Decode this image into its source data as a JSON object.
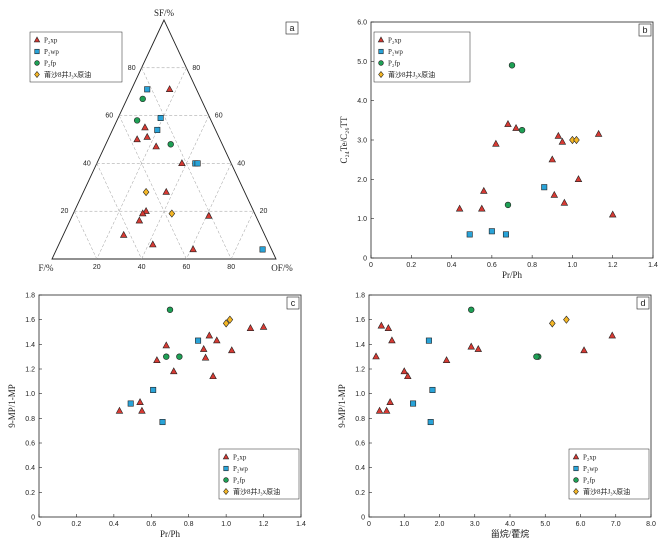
{
  "colors": {
    "P2xp": "#d63a33",
    "P2wp": "#29a3d8",
    "P2fp": "#1ea055",
    "oil": "#f4b625"
  },
  "chart_data": [
    {
      "panel": "a",
      "type": "scatter",
      "axes": {
        "top": "SF/%",
        "left": "F/%",
        "right": "OF/%"
      },
      "ticks": [
        "20",
        "40",
        "60",
        "80"
      ],
      "legend_position": "top-left",
      "legend": [
        "P₂xp",
        "P₂wp",
        "P₂fp",
        "莆沙8井J₃x原油"
      ],
      "series": [
        {
          "name": "P₂xp",
          "marker": "triangle",
          "color": "#d63a33",
          "points": [
            [
              71,
              12,
              17
            ],
            [
              55,
              31,
              14
            ],
            [
              50,
              37,
              13
            ],
            [
              51,
              32,
              17
            ],
            [
              47,
              30,
              23
            ],
            [
              40,
              22,
              38
            ],
            [
              28,
              35,
              37
            ],
            [
              20,
              48,
              32
            ],
            [
              19,
              50,
              31
            ],
            [
              16,
              53,
              31
            ],
            [
              6,
              52,
              42
            ],
            [
              18,
              21,
              61
            ],
            [
              10,
              63,
              27
            ],
            [
              4,
              35,
              61
            ]
          ]
        },
        {
          "name": "P₂wp",
          "marker": "square",
          "color": "#29a3d8",
          "points": [
            [
              71,
              22,
              7
            ],
            [
              59,
              22,
              19
            ],
            [
              54,
              26,
              20
            ],
            [
              40,
              16,
              44
            ],
            [
              40,
              15,
              45
            ],
            [
              4,
              4,
              92
            ]
          ]
        },
        {
          "name": "P₂fp",
          "marker": "circle",
          "color": "#1ea055",
          "points": [
            [
              67,
              26,
              7
            ],
            [
              58,
              33,
              9
            ],
            [
              48,
              23,
              29
            ]
          ]
        },
        {
          "name": "莆沙8井J₃x原油",
          "marker": "diamond",
          "color": "#f4b625",
          "points": [
            [
              28,
              44,
              28
            ],
            [
              19,
              37,
              44
            ]
          ]
        }
      ]
    },
    {
      "panel": "b",
      "type": "scatter",
      "xlabel": "Pr/Ph",
      "ylabel": "C₂₄Te/C₂₆TT",
      "xlim": [
        0,
        1.4
      ],
      "ylim": [
        0,
        6.0
      ],
      "xticks": [
        "0",
        "0.2",
        "0.4",
        "0.6",
        "0.8",
        "1.0",
        "1.2",
        "1.4"
      ],
      "yticks": [
        "0",
        "1.0",
        "2.0",
        "3.0",
        "4.0",
        "5.0",
        "6.0"
      ],
      "legend_position": "top-left",
      "legend": [
        "P₂xp",
        "P₂wp",
        "P₂fp",
        "莆沙8井J₃x原油"
      ],
      "series": [
        {
          "name": "P₂xp",
          "marker": "triangle",
          "color": "#d63a33",
          "points": [
            [
              0.44,
              1.25
            ],
            [
              0.55,
              1.25
            ],
            [
              0.56,
              1.7
            ],
            [
              0.62,
              2.9
            ],
            [
              0.68,
              3.4
            ],
            [
              0.72,
              3.3
            ],
            [
              0.9,
              2.5
            ],
            [
              0.91,
              1.6
            ],
            [
              0.93,
              3.1
            ],
            [
              0.95,
              2.95
            ],
            [
              0.96,
              1.4
            ],
            [
              1.03,
              2.0
            ],
            [
              1.13,
              3.15
            ],
            [
              1.2,
              1.1
            ]
          ]
        },
        {
          "name": "P₂wp",
          "marker": "square",
          "color": "#29a3d8",
          "points": [
            [
              0.49,
              0.6
            ],
            [
              0.6,
              0.68
            ],
            [
              0.67,
              0.6
            ],
            [
              0.86,
              1.8
            ]
          ]
        },
        {
          "name": "P₂fp",
          "marker": "circle",
          "color": "#1ea055",
          "points": [
            [
              0.7,
              4.9
            ],
            [
              0.75,
              3.25
            ],
            [
              0.68,
              1.35
            ]
          ]
        },
        {
          "name": "莆沙8井J₃x原油",
          "marker": "diamond",
          "color": "#f4b625",
          "points": [
            [
              1.0,
              3.0
            ],
            [
              1.02,
              3.0
            ]
          ]
        }
      ]
    },
    {
      "panel": "c",
      "type": "scatter",
      "xlabel": "Pr/Ph",
      "ylabel": "9-MP/1-MP",
      "xlim": [
        0,
        1.4
      ],
      "ylim": [
        0,
        1.8
      ],
      "xticks": [
        "0",
        "0.2",
        "0.4",
        "0.6",
        "0.8",
        "1.0",
        "1.2",
        "1.4"
      ],
      "yticks": [
        "0",
        "0.2",
        "0.4",
        "0.6",
        "0.8",
        "1.0",
        "1.2",
        "1.4",
        "1.6",
        "1.8"
      ],
      "legend_position": "bottom-right",
      "legend": [
        "P₂xp",
        "P₂wp",
        "P₂fp",
        "莆沙8井J₃x原油"
      ],
      "series": [
        {
          "name": "P₂xp",
          "marker": "triangle",
          "color": "#d63a33",
          "points": [
            [
              0.43,
              0.86
            ],
            [
              0.54,
              0.93
            ],
            [
              0.55,
              0.86
            ],
            [
              0.63,
              1.27
            ],
            [
              0.68,
              1.39
            ],
            [
              0.72,
              1.18
            ],
            [
              0.88,
              1.36
            ],
            [
              0.89,
              1.29
            ],
            [
              0.91,
              1.47
            ],
            [
              0.93,
              1.14
            ],
            [
              0.95,
              1.43
            ],
            [
              1.03,
              1.35
            ],
            [
              1.13,
              1.53
            ],
            [
              1.2,
              1.54
            ]
          ]
        },
        {
          "name": "P₂wp",
          "marker": "square",
          "color": "#29a3d8",
          "points": [
            [
              0.49,
              0.92
            ],
            [
              0.61,
              1.03
            ],
            [
              0.66,
              0.77
            ],
            [
              0.85,
              1.43
            ]
          ]
        },
        {
          "name": "P₂fp",
          "marker": "circle",
          "color": "#1ea055",
          "points": [
            [
              0.68,
              1.3
            ],
            [
              0.7,
              1.68
            ],
            [
              0.75,
              1.3
            ]
          ]
        },
        {
          "name": "莆沙8井J₃x原油",
          "marker": "diamond",
          "color": "#f4b625",
          "points": [
            [
              1.0,
              1.57
            ],
            [
              1.02,
              1.6
            ]
          ]
        }
      ]
    },
    {
      "panel": "d",
      "type": "scatter",
      "xlabel": "甾烷/藿烷",
      "ylabel": "9-MP/1-MP",
      "xlim": [
        0,
        8.0
      ],
      "ylim": [
        0,
        1.8
      ],
      "xticks": [
        "0",
        "1.0",
        "2.0",
        "3.0",
        "4.0",
        "5.0",
        "6.0",
        "7.0",
        "8.0"
      ],
      "yticks": [
        "0",
        "0.2",
        "0.4",
        "0.6",
        "0.8",
        "1.0",
        "1.2",
        "1.4",
        "1.6",
        "1.8"
      ],
      "legend_position": "bottom-right",
      "legend": [
        "P₂xp",
        "P₂wp",
        "P₂fp",
        "莆沙8井J₃x原油"
      ],
      "series": [
        {
          "name": "P₂xp",
          "marker": "triangle",
          "color": "#d63a33",
          "points": [
            [
              0.2,
              1.3
            ],
            [
              0.3,
              0.86
            ],
            [
              0.35,
              1.55
            ],
            [
              0.5,
              0.86
            ],
            [
              0.55,
              1.53
            ],
            [
              0.6,
              0.93
            ],
            [
              0.65,
              1.43
            ],
            [
              1.0,
              1.18
            ],
            [
              1.1,
              1.14
            ],
            [
              2.2,
              1.27
            ],
            [
              2.9,
              1.38
            ],
            [
              3.1,
              1.36
            ],
            [
              6.1,
              1.35
            ],
            [
              6.9,
              1.47
            ]
          ]
        },
        {
          "name": "P₂wp",
          "marker": "square",
          "color": "#29a3d8",
          "points": [
            [
              1.25,
              0.92
            ],
            [
              1.7,
              1.43
            ],
            [
              1.75,
              0.77
            ],
            [
              1.8,
              1.03
            ]
          ]
        },
        {
          "name": "P₂fp",
          "marker": "circle",
          "color": "#1ea055",
          "points": [
            [
              2.9,
              1.68
            ],
            [
              4.8,
              1.3
            ],
            [
              4.75,
              1.3
            ]
          ]
        },
        {
          "name": "莆沙8井J₃x原油",
          "marker": "diamond",
          "color": "#f4b625",
          "points": [
            [
              5.2,
              1.57
            ],
            [
              5.6,
              1.6
            ]
          ]
        }
      ]
    }
  ]
}
